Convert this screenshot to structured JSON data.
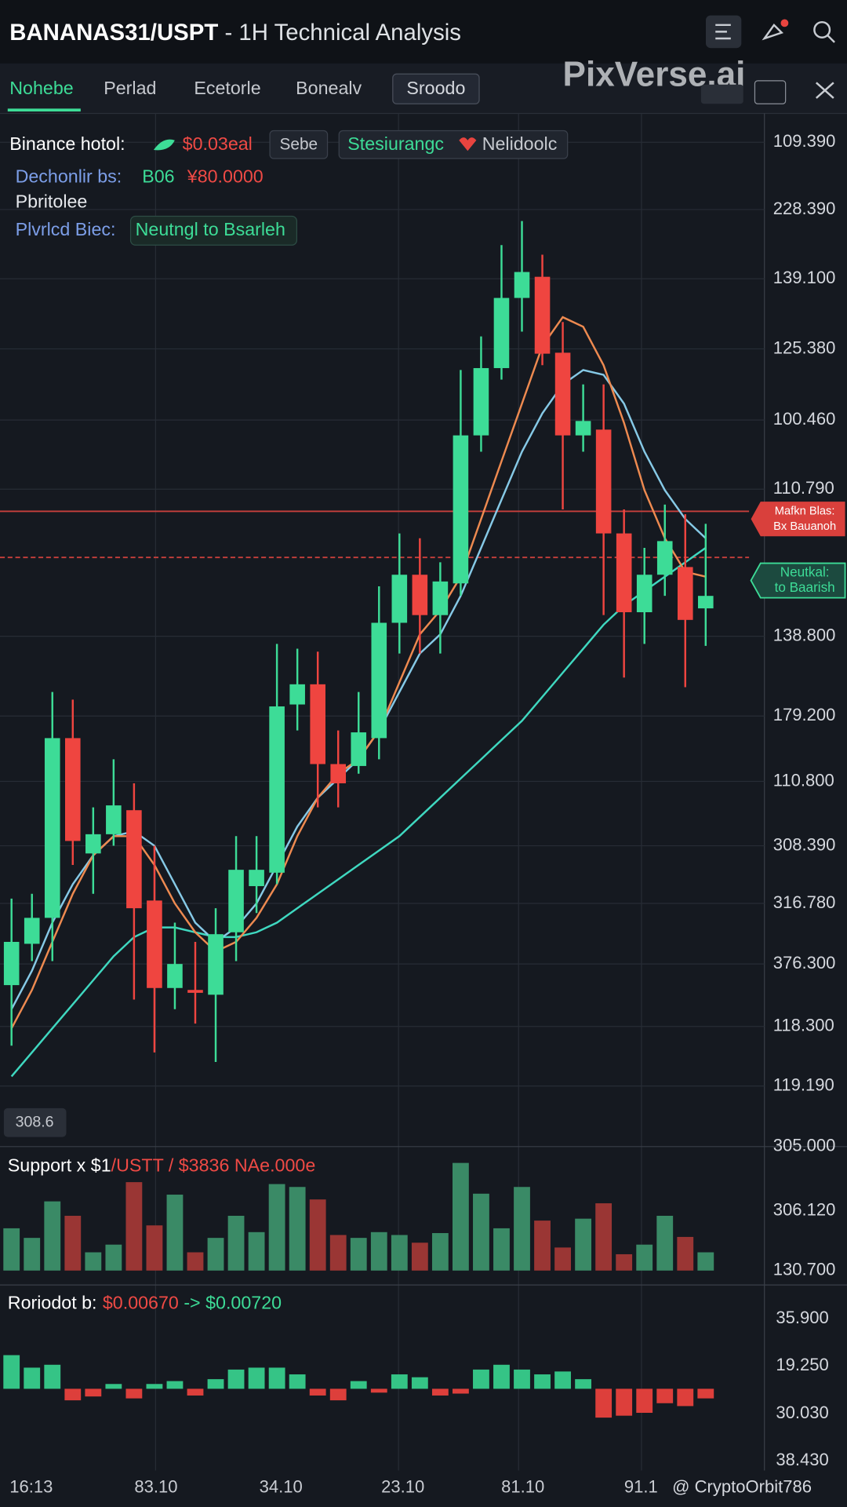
{
  "header": {
    "symbol": "BANANAS31/USPT",
    "subtitle": " - 1H Technical Analysis"
  },
  "tabs": [
    "Nohebe",
    "Perlad",
    "Ecetorle",
    "Bonealv",
    "Sroodo"
  ],
  "watermark": "PixVerse.ai",
  "info": {
    "row1": {
      "label": "Binance hotol:",
      "price": "$0.03eal",
      "box1": "Sebe",
      "box2_a": "Stesiurangc",
      "box2_b": "Nelidoolc"
    },
    "row2": {
      "label": "Dechonlir bs:",
      "a": "B06",
      "b": "¥80.0000"
    },
    "row3": "Pbritolee",
    "row4": {
      "label": "Plvrlcd Biec:",
      "value": "Neutngl to Bsarleh"
    }
  },
  "price_axis": [
    "109.390",
    "228.390",
    "139.100",
    "125.380",
    "100.460",
    "110.790",
    "138.800",
    "179.200",
    "110.800",
    "308.390",
    "316.780",
    "376.300",
    "118.300",
    "119.190"
  ],
  "price_ylim": [
    0,
    120
  ],
  "candles": [
    {
      "open": 17.5,
      "high": 26.5,
      "low": 11.2,
      "close": 22
    },
    {
      "open": 21.8,
      "high": 27,
      "low": 20,
      "close": 24.5
    },
    {
      "open": 24.5,
      "high": 48,
      "low": 20,
      "close": 43.2
    },
    {
      "open": 43.2,
      "high": 47.2,
      "low": 30,
      "close": 32.5
    },
    {
      "open": 31.2,
      "high": 36,
      "low": 27,
      "close": 33.2
    },
    {
      "open": 33.2,
      "high": 41,
      "low": 32,
      "close": 36.2
    },
    {
      "open": 35.7,
      "high": 38.5,
      "low": 16,
      "close": 25.5
    },
    {
      "open": 26.3,
      "high": 32,
      "low": 10.5,
      "close": 17.2
    },
    {
      "open": 17.2,
      "high": 24,
      "low": 15,
      "close": 19.7
    },
    {
      "open": 17,
      "high": 22,
      "low": 13.5,
      "close": 16.7
    },
    {
      "open": 16.5,
      "high": 25.5,
      "low": 9.5,
      "close": 22.8
    },
    {
      "open": 23,
      "high": 33,
      "low": 20,
      "close": 29.5
    },
    {
      "open": 27.8,
      "high": 33,
      "low": 25,
      "close": 29.5
    },
    {
      "open": 29.2,
      "high": 53,
      "low": 28,
      "close": 46.5
    },
    {
      "open": 46.7,
      "high": 52.5,
      "low": 44,
      "close": 48.8
    },
    {
      "open": 48.8,
      "high": 52.2,
      "low": 36,
      "close": 40.5
    },
    {
      "open": 40.5,
      "high": 44,
      "low": 36,
      "close": 38.5
    },
    {
      "open": 40.3,
      "high": 48,
      "low": 39.5,
      "close": 43.8
    },
    {
      "open": 43.2,
      "high": 59,
      "low": 41,
      "close": 55.2
    },
    {
      "open": 55.2,
      "high": 64.5,
      "low": 52,
      "close": 60.2
    },
    {
      "open": 60.2,
      "high": 64,
      "low": 52,
      "close": 56
    },
    {
      "open": 56,
      "high": 61.5,
      "low": 52,
      "close": 59.5
    },
    {
      "open": 59.3,
      "high": 81.5,
      "low": 58,
      "close": 74.7
    },
    {
      "open": 74.7,
      "high": 85,
      "low": 73,
      "close": 81.7
    },
    {
      "open": 81.7,
      "high": 94.5,
      "low": 80.5,
      "close": 89
    },
    {
      "open": 89,
      "high": 97,
      "low": 85.5,
      "close": 91.7
    },
    {
      "open": 91.2,
      "high": 93.5,
      "low": 82,
      "close": 83.2
    },
    {
      "open": 83.3,
      "high": 86.5,
      "low": 67,
      "close": 74.7
    },
    {
      "open": 74.7,
      "high": 80,
      "low": 73,
      "close": 76.2
    },
    {
      "open": 75.3,
      "high": 80,
      "low": 56,
      "close": 64.5
    },
    {
      "open": 64.5,
      "high": 67,
      "low": 49.5,
      "close": 56.3
    },
    {
      "open": 56.3,
      "high": 63,
      "low": 53,
      "close": 60.2
    },
    {
      "open": 60.2,
      "high": 67.5,
      "low": 58,
      "close": 63.7
    },
    {
      "open": 61,
      "high": 66.5,
      "low": 48.5,
      "close": 55.5
    },
    {
      "open": 56.7,
      "high": 65.5,
      "low": 52.8,
      "close": 58
    }
  ],
  "ma_lines": [
    {
      "color": "#3fd8c0",
      "values": [
        8,
        10.5,
        13,
        15.5,
        18,
        20.5,
        22.5,
        23.5,
        23.5,
        23,
        22.5,
        22.5,
        23,
        24,
        25.5,
        27,
        28.5,
        30,
        31.5,
        33,
        35,
        37,
        39,
        41,
        43,
        45,
        47.5,
        50,
        52.5,
        55,
        57,
        58.5,
        60,
        61.5,
        63
      ]
    },
    {
      "color": "#86c9e6",
      "values": [
        15,
        19,
        24,
        28,
        31,
        33,
        33.5,
        32,
        28,
        24,
        22,
        23.5,
        26,
        30,
        34,
        37,
        39,
        41,
        44,
        48,
        52,
        54,
        58,
        63,
        68,
        73,
        77,
        80,
        81.5,
        81,
        78,
        73,
        69,
        66,
        64
      ]
    },
    {
      "color": "#ee8a50",
      "values": [
        13,
        17,
        22,
        27,
        31,
        33,
        33,
        30,
        26,
        23,
        21,
        22,
        24.5,
        28,
        33,
        37,
        39.5,
        41,
        44,
        49,
        54,
        56.5,
        60,
        66,
        72,
        78,
        84,
        87,
        86,
        82,
        76,
        69,
        64,
        60.5,
        60
      ]
    }
  ],
  "levels": [
    {
      "value": 66.8,
      "dashed": false,
      "tag_color": "#d9403c",
      "tag": [
        "Mafkn Blas:",
        "Bx Bauanoh"
      ]
    },
    {
      "value": 62,
      "dashed": true,
      "tag_color": "#3ddc97",
      "tag": [
        "Neutkal:",
        "to Baarish"
      ]
    }
  ],
  "pane_badge": "308.6",
  "volume": {
    "label": "Support x $1",
    "label_red": "/USTT / $3836  NAe.000e",
    "axis": [
      "305.000",
      "306.120",
      "130.700"
    ],
    "ylim": [
      0,
      120
    ],
    "values": [
      44,
      34,
      72,
      57,
      19,
      27,
      92,
      47,
      79,
      19,
      34,
      57,
      40,
      90,
      87,
      74,
      37,
      34,
      40,
      37,
      29,
      39,
      112,
      80,
      44,
      87,
      52,
      24,
      54,
      70,
      17,
      27,
      57,
      35,
      19
    ]
  },
  "oscillator": {
    "label": "Roriodot b:",
    "from": "$0.00670",
    "to": " -> $0.00720",
    "axis": [
      "35.900",
      "19.250",
      "30.030",
      "38.430"
    ],
    "ylim": [
      -50,
      50
    ],
    "values": [
      35,
      22,
      25,
      -12,
      -8,
      5,
      -10,
      5,
      8,
      -7,
      10,
      20,
      22,
      22,
      15,
      -7,
      -12,
      8,
      -4,
      15,
      12,
      -7,
      -5,
      20,
      25,
      20,
      15,
      18,
      10,
      -30,
      -28,
      -25,
      -15,
      -18,
      -10
    ]
  },
  "time_axis": [
    "16:13",
    "83.10",
    "34.10",
    "23.10",
    "81.10",
    "91.1"
  ],
  "credit": "@ CryptoOrbit786"
}
